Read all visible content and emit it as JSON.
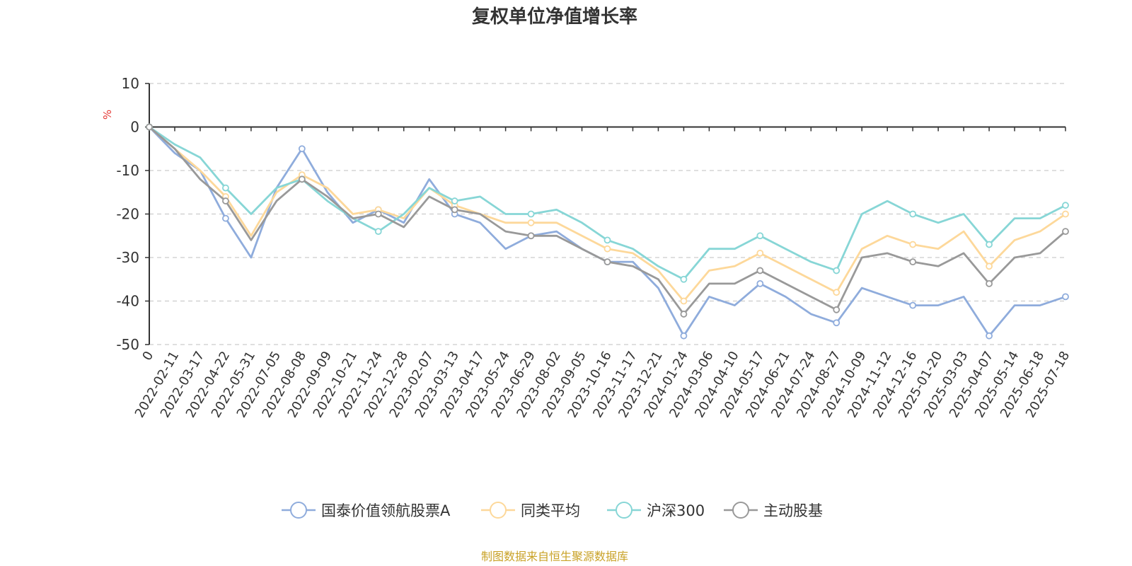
{
  "chart_data": {
    "type": "line",
    "title": "复权单位净值增长率",
    "y_unit": "%",
    "ylim": [
      -50,
      10
    ],
    "yticks": [
      10,
      0,
      -10,
      -20,
      -30,
      -40,
      -50
    ],
    "grid": "horizontal dashed",
    "legend_position": "bottom",
    "x_labels": [
      "0",
      "2022-02-11",
      "2022-03-17",
      "2022-04-22",
      "2022-05-31",
      "2022-07-05",
      "2022-08-08",
      "2022-09-09",
      "2022-10-21",
      "2022-11-24",
      "2022-12-28",
      "2023-02-07",
      "2023-03-13",
      "2023-04-17",
      "2023-05-24",
      "2023-06-29",
      "2023-08-02",
      "2023-09-05",
      "2023-10-16",
      "2023-11-17",
      "2023-12-21",
      "2024-01-24",
      "2024-03-06",
      "2024-04-10",
      "2024-05-17",
      "2024-06-21",
      "2024-07-24",
      "2024-08-27",
      "2024-10-09",
      "2024-11-12",
      "2024-12-16",
      "2025-01-20",
      "2025-03-03",
      "2025-04-07",
      "2025-05-14",
      "2025-06-18",
      "2025-07-18"
    ],
    "series": [
      {
        "name": "国泰价值领航股票A",
        "color": "#8facdc",
        "values": [
          0,
          -6,
          -10,
          -21,
          -30,
          -14,
          -5,
          -15,
          -22,
          -19,
          -22,
          -12,
          -20,
          -22,
          -28,
          -25,
          -24,
          -28,
          -31,
          -31,
          -37,
          -48,
          -39,
          -41,
          -36,
          -39,
          -43,
          -45,
          -37,
          -39,
          -41,
          -41,
          -39,
          -48,
          -41,
          -41,
          -39
        ]
      },
      {
        "name": "同类平均",
        "color": "#fdd89a",
        "values": [
          0,
          -5,
          -10,
          -16,
          -25,
          -15,
          -11,
          -14,
          -20,
          -19,
          -21,
          -14,
          -18,
          -20,
          -22,
          -22,
          -22,
          -25,
          -28,
          -29,
          -33,
          -40,
          -33,
          -32,
          -29,
          -32,
          -35,
          -38,
          -28,
          -25,
          -27,
          -28,
          -24,
          -32,
          -26,
          -24,
          -20
        ]
      },
      {
        "name": "沪深300",
        "color": "#87d6d6",
        "values": [
          0,
          -4,
          -7,
          -14,
          -20,
          -14,
          -12,
          -17,
          -21,
          -24,
          -20,
          -14,
          -17,
          -16,
          -20,
          -20,
          -19,
          -22,
          -26,
          -28,
          -32,
          -35,
          -28,
          -28,
          -25,
          -28,
          -31,
          -33,
          -20,
          -17,
          -20,
          -22,
          -20,
          -27,
          -21,
          -21,
          -18
        ]
      },
      {
        "name": "主动股基",
        "color": "#999999",
        "values": [
          0,
          -5,
          -12,
          -17,
          -26,
          -17,
          -12,
          -16,
          -21,
          -20,
          -23,
          -16,
          -19,
          -20,
          -24,
          -25,
          -25,
          -28,
          -31,
          -32,
          -35,
          -43,
          -36,
          -36,
          -33,
          -36,
          -39,
          -42,
          -30,
          -29,
          -31,
          -32,
          -29,
          -36,
          -30,
          -29,
          -24
        ]
      }
    ]
  },
  "source_text": "制图数据来自恒生聚源数据库",
  "colors": {
    "unit": "#e53935",
    "source": "#c9a227",
    "axis": "#333333",
    "grid": "#cccccc"
  }
}
